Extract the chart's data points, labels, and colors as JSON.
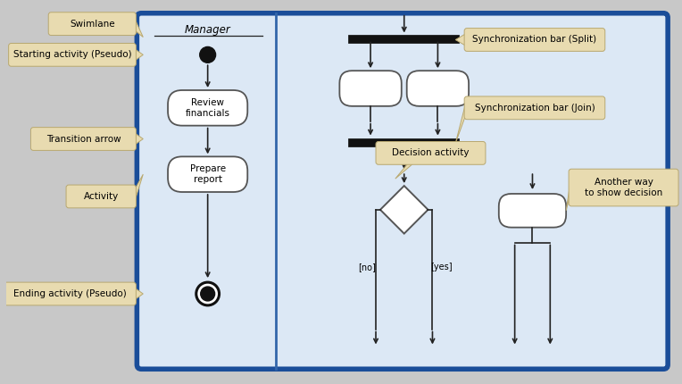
{
  "bg_outer": "#c8c8c8",
  "bg_inner": "#dce8f5",
  "border_color": "#1a4d99",
  "swimlane_divider": "#3366aa",
  "label_bg": "#e8dbb0",
  "label_border": "#b8a870",
  "arrow_color": "#222222",
  "sync_bar_color": "#111111",
  "activity_fill": "#ffffff",
  "activity_border": "#555555",
  "start_color": "#111111",
  "end_outer": "#111111",
  "end_inner": "#111111",
  "diamond_fill": "#ffffff",
  "diamond_border": "#555555",
  "manager_text": "Manager",
  "review_text": "Review\nfinancials",
  "prepare_text": "Prepare\nreport",
  "decision_text": "Decision activity",
  "no_text": "[no]",
  "yes_text": "[yes]",
  "labels_left": [
    "Swimlane",
    "Starting activity (Pseudo)",
    "Transition arrow",
    "Activity",
    "Ending activity (Pseudo)"
  ],
  "labels_right_split": "Synchronization bar (Split)",
  "labels_right_join": "Synchronization bar (Join)",
  "labels_right_alt": "Another way\nto show decision"
}
